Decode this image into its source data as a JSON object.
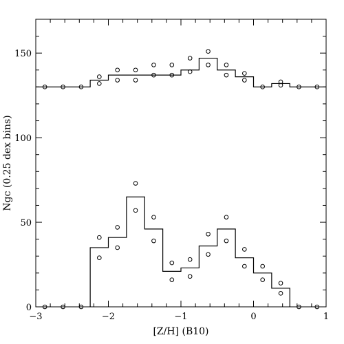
{
  "chart_data": {
    "type": "line",
    "title": "",
    "xlabel": "[Z/H] (B10)",
    "ylabel": "Ngc (0.25 dex bins)",
    "xlim": [
      -3,
      1
    ],
    "ylim": [
      0,
      170
    ],
    "grid": false,
    "xticks": [
      -3,
      -2,
      -1,
      0,
      1
    ],
    "xtick_labels": [
      "−3",
      "−2",
      "−1",
      "0",
      "1"
    ],
    "yticks": [
      0,
      50,
      100,
      150
    ],
    "ytick_labels": [
      "0",
      "50",
      "100",
      "150"
    ],
    "series": [
      {
        "style": "step",
        "bin_edges": [
          -3.0,
          -2.25,
          -2.0,
          -1.75,
          -1.5,
          -1.25,
          -1.0,
          -0.75,
          -0.5,
          -0.25,
          0.0,
          0.25,
          0.5,
          1.0
        ],
        "values": [
          130,
          134,
          137,
          137,
          137,
          137,
          140,
          147,
          140,
          136,
          130,
          132,
          130
        ]
      },
      {
        "style": "markers",
        "marker": "open-circle",
        "x": [
          -2.875,
          -2.625,
          -2.375,
          -2.125,
          -2.125,
          -1.875,
          -1.875,
          -1.625,
          -1.625,
          -1.375,
          -1.375,
          -1.125,
          -1.125,
          -0.875,
          -0.875,
          -0.625,
          -0.625,
          -0.375,
          -0.375,
          -0.125,
          -0.125,
          0.125,
          0.375,
          0.375,
          0.625,
          0.875
        ],
        "y": [
          130,
          130,
          130,
          136,
          132,
          140,
          134,
          140,
          134,
          143,
          137,
          143,
          137,
          147,
          139,
          151,
          143,
          143,
          137,
          138,
          134,
          130,
          133,
          131,
          130,
          130
        ]
      },
      {
        "style": "step",
        "bin_edges": [
          -2.25,
          -2.0,
          -1.75,
          -1.5,
          -1.25,
          -1.0,
          -0.75,
          -0.5,
          -0.25,
          0.0,
          0.25,
          0.5
        ],
        "values": [
          35,
          41,
          65,
          46,
          21,
          23,
          36,
          46,
          29,
          20,
          11
        ]
      },
      {
        "style": "markers",
        "marker": "open-circle",
        "x": [
          -2.875,
          -2.625,
          -2.375,
          -2.125,
          -2.125,
          -1.875,
          -1.875,
          -1.625,
          -1.625,
          -1.375,
          -1.375,
          -1.125,
          -1.125,
          -0.875,
          -0.875,
          -0.625,
          -0.625,
          -0.375,
          -0.375,
          -0.125,
          -0.125,
          0.125,
          0.125,
          0.375,
          0.375,
          0.625,
          0.875
        ],
        "y": [
          0,
          0,
          0,
          41,
          29,
          47,
          35,
          73,
          57,
          53,
          39,
          26,
          16,
          28,
          18,
          43,
          31,
          53,
          39,
          34,
          24,
          24,
          16,
          14,
          8,
          0,
          0
        ]
      }
    ]
  }
}
